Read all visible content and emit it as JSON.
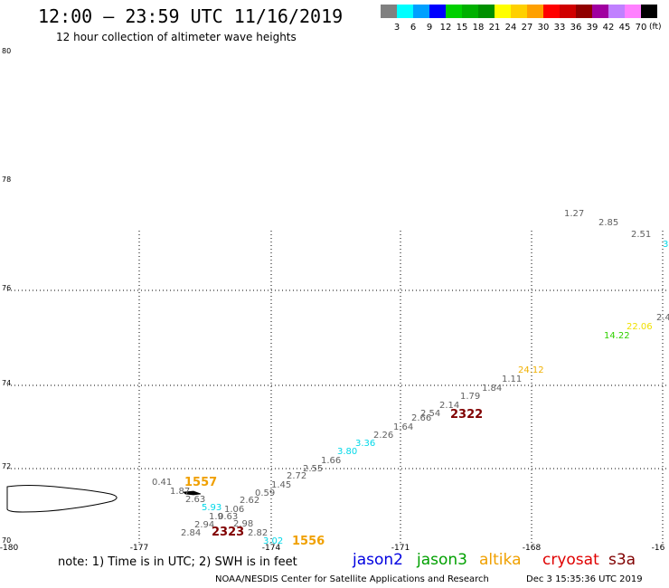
{
  "header": {
    "title": "12:00 – 23:59 UTC 11/16/2019",
    "subtitle": "12 hour collection of altimeter wave heights"
  },
  "color_scale": {
    "unit": "(ft)",
    "swatches": [
      {
        "label": "",
        "color": "#808080"
      },
      {
        "label": "3",
        "color": "#00ffff"
      },
      {
        "label": "6",
        "color": "#00a0ff"
      },
      {
        "label": "9",
        "color": "#0000ff"
      },
      {
        "label": "12",
        "color": "#00d000"
      },
      {
        "label": "15",
        "color": "#00b000"
      },
      {
        "label": "18",
        "color": "#009000"
      },
      {
        "label": "21",
        "color": "#ffff00"
      },
      {
        "label": "24",
        "color": "#ffd000"
      },
      {
        "label": "27",
        "color": "#ffa000"
      },
      {
        "label": "30",
        "color": "#ff0000"
      },
      {
        "label": "33",
        "color": "#d00000"
      },
      {
        "label": "36",
        "color": "#900000"
      },
      {
        "label": "39",
        "color": "#a000a0"
      },
      {
        "label": "42",
        "color": "#c080ff"
      },
      {
        "label": "45",
        "color": "#ff80ff"
      },
      {
        "label": "70",
        "color": "#000000"
      }
    ]
  },
  "map": {
    "lat_labels": [
      "80",
      "78",
      "76",
      "74",
      "72",
      "70"
    ],
    "lon_labels": [
      "-180",
      "-177",
      "-174",
      "-171",
      "-168",
      "-16"
    ],
    "swh_points": [
      {
        "text": "1.27",
        "color": "#606060"
      },
      {
        "text": "2.85",
        "color": "#606060"
      },
      {
        "text": "2.51",
        "color": "#606060"
      },
      {
        "text": "3",
        "color": "#00d8e8"
      },
      {
        "text": "2.4",
        "color": "#606060"
      },
      {
        "text": "22.06",
        "color": "#f0e000"
      },
      {
        "text": "14.22",
        "color": "#30d000"
      },
      {
        "text": "24.12",
        "color": "#f0b000"
      },
      {
        "text": "1.11",
        "color": "#606060"
      },
      {
        "text": "1.84",
        "color": "#606060"
      },
      {
        "text": "1.79",
        "color": "#606060"
      },
      {
        "text": "2.14",
        "color": "#606060"
      },
      {
        "text": "2.54",
        "color": "#606060"
      },
      {
        "text": "2.66",
        "color": "#606060"
      },
      {
        "text": "1.64",
        "color": "#606060"
      },
      {
        "text": "2.26",
        "color": "#606060"
      },
      {
        "text": "3.36",
        "color": "#00d8e8"
      },
      {
        "text": "3.80",
        "color": "#00d8e8"
      },
      {
        "text": "1.66",
        "color": "#606060"
      },
      {
        "text": "2.55",
        "color": "#606060"
      },
      {
        "text": "2.72",
        "color": "#606060"
      },
      {
        "text": "1.45",
        "color": "#606060"
      },
      {
        "text": "0.59",
        "color": "#606060"
      },
      {
        "text": "2.62",
        "color": "#606060"
      },
      {
        "text": "1.06",
        "color": "#606060"
      },
      {
        "text": "0.41",
        "color": "#606060"
      },
      {
        "text": "1.87",
        "color": "#606060"
      },
      {
        "text": "2.63",
        "color": "#606060"
      },
      {
        "text": "5.93",
        "color": "#00d8e8"
      },
      {
        "text": "1.9",
        "color": "#606060"
      },
      {
        "text": "0.63",
        "color": "#606060"
      },
      {
        "text": "2.94",
        "color": "#606060"
      },
      {
        "text": "2.98",
        "color": "#606060"
      },
      {
        "text": "2.84",
        "color": "#606060"
      },
      {
        "text": "2.82",
        "color": "#606060"
      },
      {
        "text": "3.02",
        "color": "#00d8e8"
      }
    ],
    "pass_times": [
      {
        "text": "2322",
        "color": "#800000"
      },
      {
        "text": "1557",
        "color": "#f0a000"
      },
      {
        "text": "2323",
        "color": "#800000"
      },
      {
        "text": "1556",
        "color": "#f0a000"
      }
    ]
  },
  "footer": {
    "note": "note: 1) Time is in UTC; 2) SWH is in feet",
    "satellites": [
      {
        "name": "jason2",
        "color": "#0000e0"
      },
      {
        "name": "jason3",
        "color": "#00a000"
      },
      {
        "name": "altika",
        "color": "#f0a000"
      },
      {
        "name": "cryosat",
        "color": "#e00000"
      },
      {
        "name": "s3a",
        "color": "#800000"
      }
    ],
    "credit": "NOAA/NESDIS Center for Satellite Applications and Research",
    "timestamp": "Dec  3 15:35:36 UTC 2019"
  }
}
